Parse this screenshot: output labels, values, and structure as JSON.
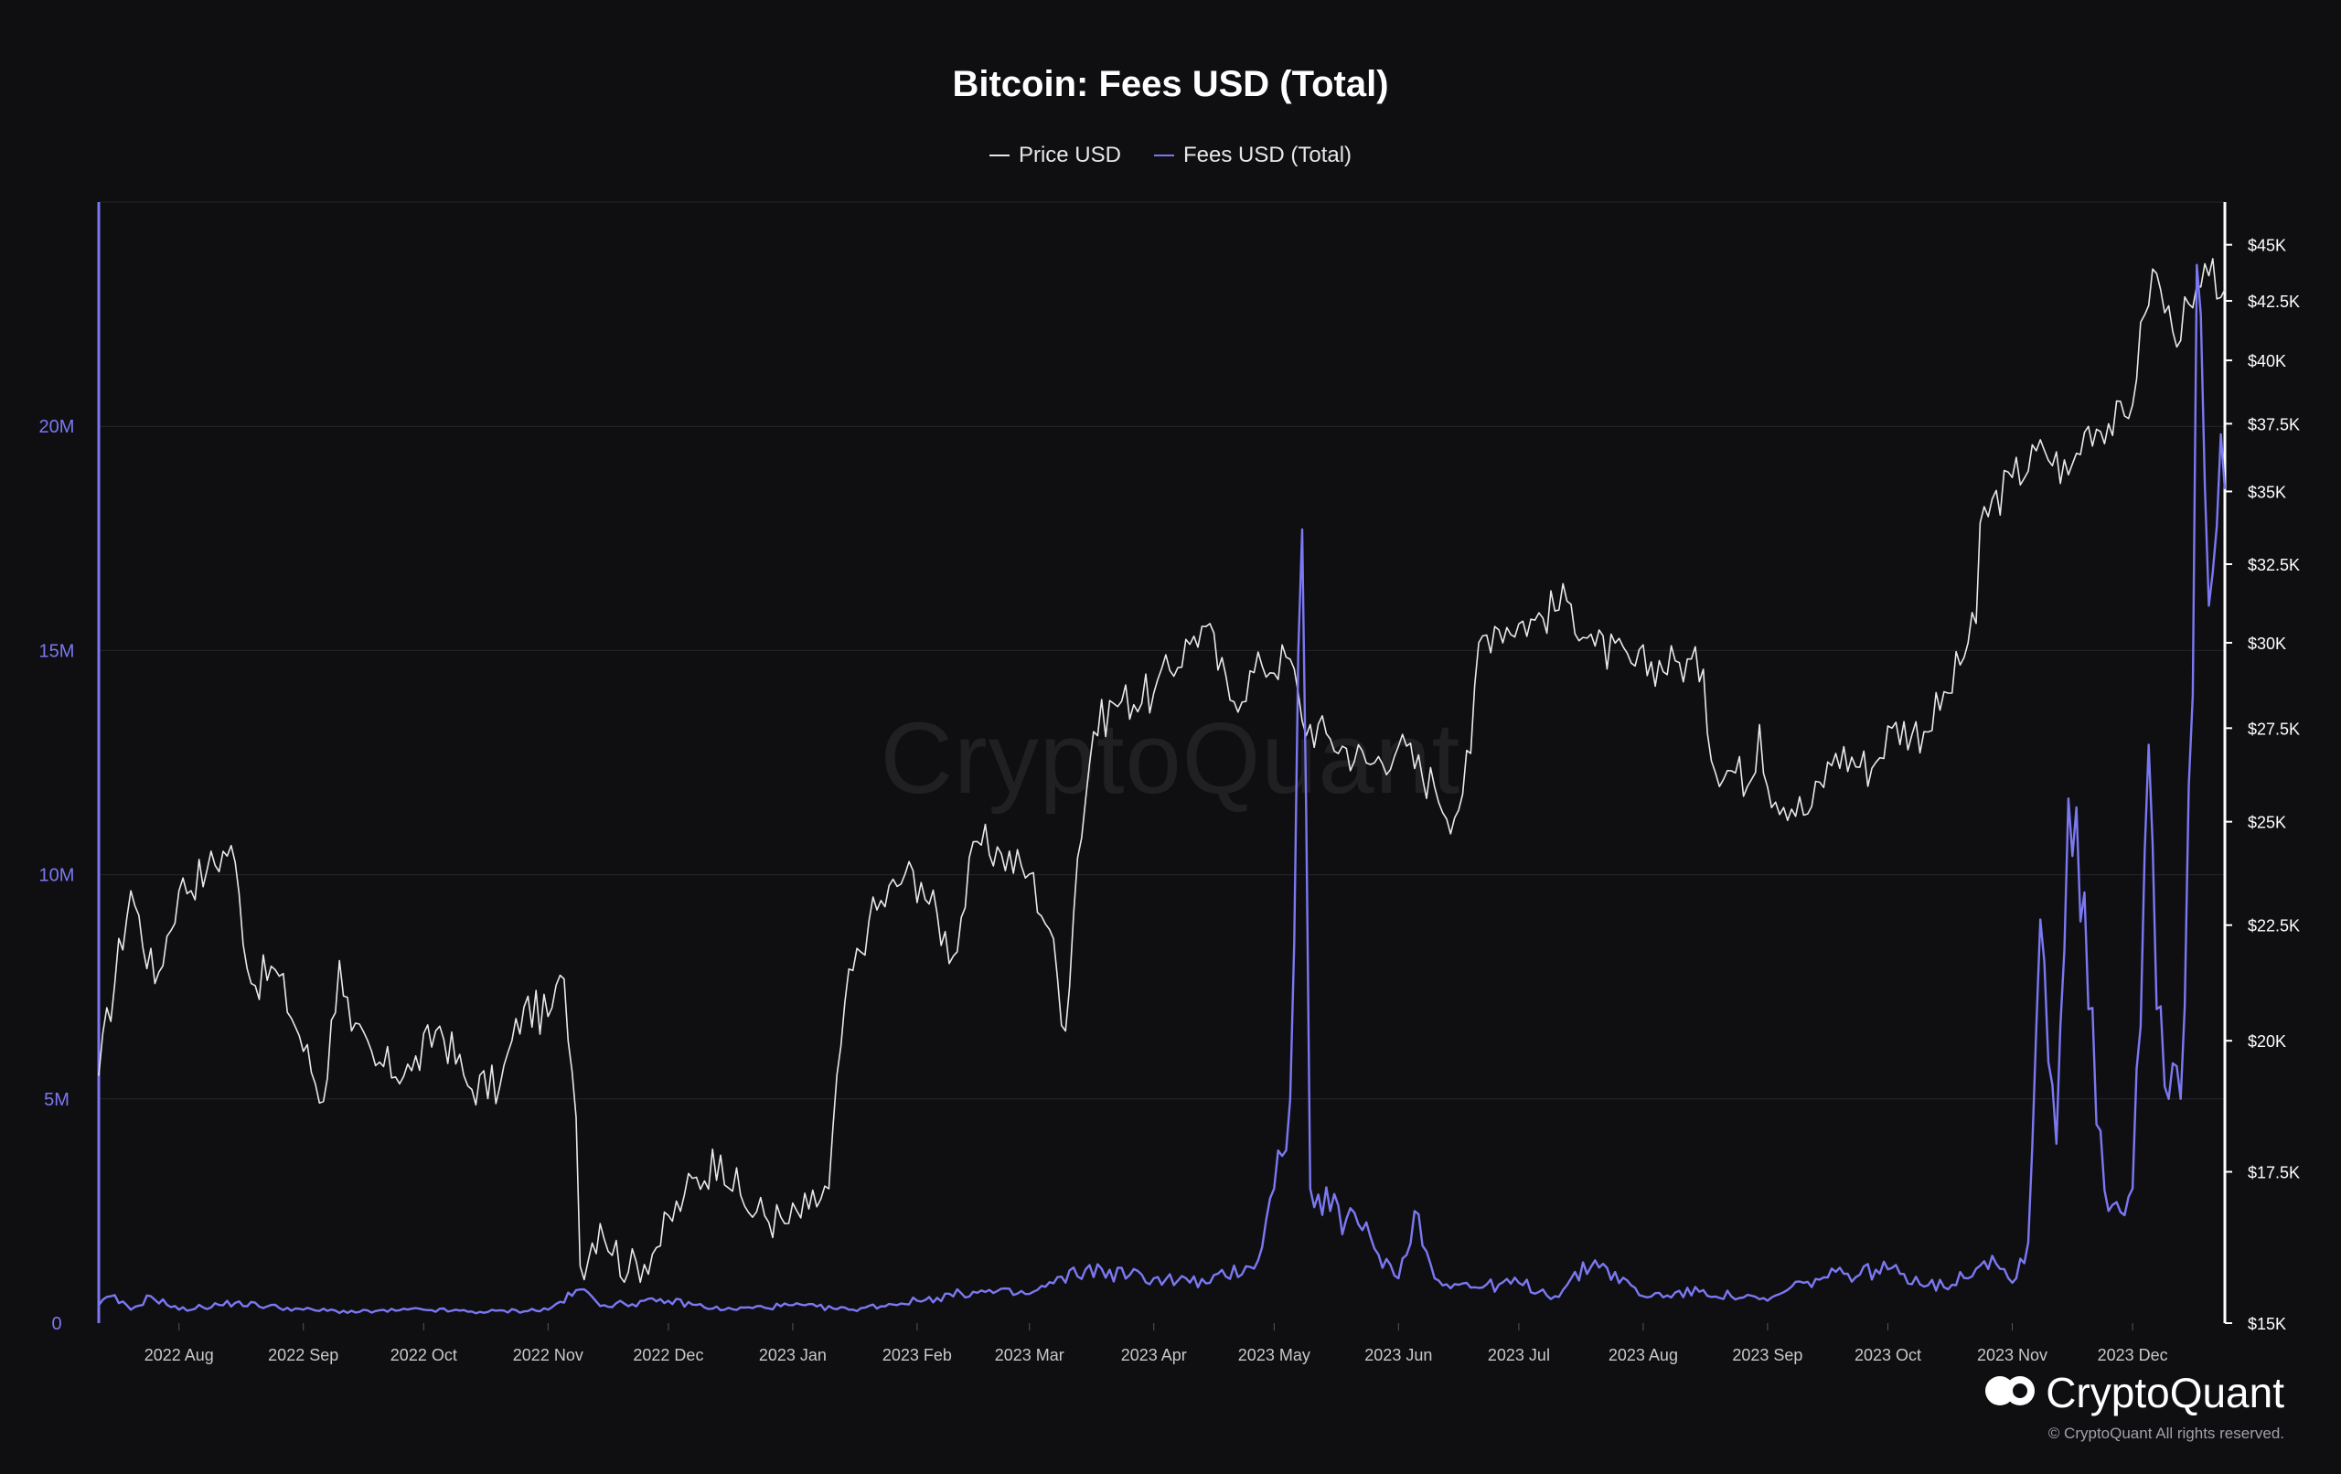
{
  "chart_data": {
    "type": "line",
    "title": "Bitcoin: Fees USD (Total)",
    "legend": {
      "placement": "top-center",
      "items": [
        "Price USD",
        "Fees USD (Total)"
      ]
    },
    "grid": true,
    "x_ticks": [
      "2022 Aug",
      "2022 Sep",
      "2022 Oct",
      "2022 Nov",
      "2022 Dec",
      "2023 Jan",
      "2023 Feb",
      "2023 Mar",
      "2023 Apr",
      "2023 May",
      "2023 Jun",
      "2023 Jul",
      "2023 Aug",
      "2023 Sep",
      "2023 Oct",
      "2023 Nov",
      "2023 Dec"
    ],
    "x_range": [
      "2022-07-12",
      "2023-12-24"
    ],
    "left_axis": {
      "ticks": [
        "0",
        "5M",
        "10M",
        "15M",
        "20M"
      ],
      "range": [
        0,
        25000000
      ],
      "color": "#7b78f2"
    },
    "right_axis": {
      "ticks": [
        "$15K",
        "$17.5K",
        "$20K",
        "$22.5K",
        "$25K",
        "$27.5K",
        "$30K",
        "$32.5K",
        "$35K",
        "$37.5K",
        "$40K",
        "$42.5K",
        "$45K"
      ],
      "range": [
        15000,
        47000
      ],
      "scale": "log"
    },
    "series": [
      {
        "name": "Price USD",
        "axis": "right",
        "color": "#e8e8e8",
        "points": [
          [
            "2022-07-12",
            19300
          ],
          [
            "2022-07-20",
            23300
          ],
          [
            "2022-07-26",
            21200
          ],
          [
            "2022-08-01",
            23300
          ],
          [
            "2022-08-08",
            23800
          ],
          [
            "2022-08-14",
            24400
          ],
          [
            "2022-08-19",
            21200
          ],
          [
            "2022-08-25",
            21500
          ],
          [
            "2022-08-31",
            20100
          ],
          [
            "2022-09-06",
            18800
          ],
          [
            "2022-09-10",
            21700
          ],
          [
            "2022-09-13",
            20200
          ],
          [
            "2022-09-19",
            19500
          ],
          [
            "2022-09-28",
            19400
          ],
          [
            "2022-10-05",
            20300
          ],
          [
            "2022-10-12",
            19100
          ],
          [
            "2022-10-20",
            19100
          ],
          [
            "2022-10-26",
            20700
          ],
          [
            "2022-11-01",
            20500
          ],
          [
            "2022-11-05",
            21300
          ],
          [
            "2022-11-08",
            18500
          ],
          [
            "2022-11-09",
            15900
          ],
          [
            "2022-11-14",
            16600
          ],
          [
            "2022-11-21",
            15800
          ],
          [
            "2022-11-28",
            16200
          ],
          [
            "2022-12-05",
            17100
          ],
          [
            "2022-12-14",
            17800
          ],
          [
            "2022-12-20",
            16900
          ],
          [
            "2022-12-30",
            16600
          ],
          [
            "2023-01-05",
            16850
          ],
          [
            "2023-01-10",
            17200
          ],
          [
            "2023-01-14",
            20800
          ],
          [
            "2023-01-20",
            22600
          ],
          [
            "2023-01-29",
            23700
          ],
          [
            "2023-02-02",
            23500
          ],
          [
            "2023-02-10",
            21800
          ],
          [
            "2023-02-16",
            24500
          ],
          [
            "2023-02-22",
            24200
          ],
          [
            "2023-03-01",
            23700
          ],
          [
            "2023-03-06",
            22400
          ],
          [
            "2023-03-10",
            20200
          ],
          [
            "2023-03-13",
            24100
          ],
          [
            "2023-03-17",
            27400
          ],
          [
            "2023-03-22",
            28200
          ],
          [
            "2023-04-01",
            28500
          ],
          [
            "2023-04-11",
            30200
          ],
          [
            "2023-04-14",
            30500
          ],
          [
            "2023-04-20",
            28300
          ],
          [
            "2023-04-28",
            29300
          ],
          [
            "2023-05-05",
            29500
          ],
          [
            "2023-05-08",
            27700
          ],
          [
            "2023-05-15",
            27200
          ],
          [
            "2023-05-25",
            26500
          ],
          [
            "2023-06-01",
            27000
          ],
          [
            "2023-06-10",
            25900
          ],
          [
            "2023-06-15",
            25100
          ],
          [
            "2023-06-19",
            26800
          ],
          [
            "2023-06-21",
            30000
          ],
          [
            "2023-06-25",
            30500
          ],
          [
            "2023-07-05",
            30700
          ],
          [
            "2023-07-13",
            31300
          ],
          [
            "2023-07-20",
            29900
          ],
          [
            "2023-07-30",
            29300
          ],
          [
            "2023-08-10",
            29400
          ],
          [
            "2023-08-16",
            29200
          ],
          [
            "2023-08-18",
            26600
          ],
          [
            "2023-08-28",
            26100
          ],
          [
            "2023-08-30",
            27600
          ],
          [
            "2023-09-01",
            25900
          ],
          [
            "2023-09-11",
            25200
          ],
          [
            "2023-09-18",
            26800
          ],
          [
            "2023-09-27",
            26400
          ],
          [
            "2023-10-02",
            27500
          ],
          [
            "2023-10-10",
            27400
          ],
          [
            "2023-10-16",
            28500
          ],
          [
            "2023-10-23",
            30600
          ],
          [
            "2023-10-24",
            33900
          ],
          [
            "2023-11-01",
            35500
          ],
          [
            "2023-11-09",
            36500
          ],
          [
            "2023-11-15",
            35600
          ],
          [
            "2023-11-20",
            37400
          ],
          [
            "2023-11-30",
            37700
          ],
          [
            "2023-12-04",
            41900
          ],
          [
            "2023-12-06",
            43900
          ],
          [
            "2023-12-11",
            41200
          ],
          [
            "2023-12-16",
            42200
          ],
          [
            "2023-12-20",
            43600
          ],
          [
            "2023-12-24",
            43000
          ]
        ]
      },
      {
        "name": "Fees USD (Total)",
        "axis": "left",
        "color": "#7b78f2",
        "points": [
          [
            "2022-07-12",
            400000
          ],
          [
            "2022-07-15",
            600000
          ],
          [
            "2022-07-20",
            300000
          ],
          [
            "2022-07-25",
            600000
          ],
          [
            "2022-08-01",
            300000
          ],
          [
            "2022-08-15",
            450000
          ],
          [
            "2022-09-01",
            300000
          ],
          [
            "2022-09-15",
            250000
          ],
          [
            "2022-10-01",
            300000
          ],
          [
            "2022-10-15",
            250000
          ],
          [
            "2022-11-01",
            300000
          ],
          [
            "2022-11-09",
            750000
          ],
          [
            "2022-11-15",
            400000
          ],
          [
            "2022-12-01",
            500000
          ],
          [
            "2022-12-15",
            300000
          ],
          [
            "2023-01-01",
            400000
          ],
          [
            "2023-01-15",
            300000
          ],
          [
            "2023-02-01",
            500000
          ],
          [
            "2023-02-15",
            700000
          ],
          [
            "2023-03-01",
            650000
          ],
          [
            "2023-03-15",
            1200000
          ],
          [
            "2023-04-01",
            1000000
          ],
          [
            "2023-04-15",
            900000
          ],
          [
            "2023-04-27",
            1400000
          ],
          [
            "2023-05-01",
            3000000
          ],
          [
            "2023-05-05",
            5000000
          ],
          [
            "2023-05-08",
            17700000
          ],
          [
            "2023-05-10",
            3000000
          ],
          [
            "2023-05-15",
            2500000
          ],
          [
            "2023-05-22",
            2200000
          ],
          [
            "2023-06-01",
            1000000
          ],
          [
            "2023-06-05",
            2500000
          ],
          [
            "2023-06-10",
            1000000
          ],
          [
            "2023-06-20",
            800000
          ],
          [
            "2023-07-01",
            900000
          ],
          [
            "2023-07-10",
            600000
          ],
          [
            "2023-07-20",
            1400000
          ],
          [
            "2023-08-01",
            600000
          ],
          [
            "2023-08-15",
            700000
          ],
          [
            "2023-09-01",
            500000
          ],
          [
            "2023-09-10",
            900000
          ],
          [
            "2023-09-20",
            1100000
          ],
          [
            "2023-10-01",
            1200000
          ],
          [
            "2023-10-15",
            800000
          ],
          [
            "2023-10-27",
            1500000
          ],
          [
            "2023-11-01",
            900000
          ],
          [
            "2023-11-05",
            1800000
          ],
          [
            "2023-11-08",
            9000000
          ],
          [
            "2023-11-12",
            4000000
          ],
          [
            "2023-11-15",
            11700000
          ],
          [
            "2023-11-17",
            11500000
          ],
          [
            "2023-11-20",
            7000000
          ],
          [
            "2023-11-25",
            2500000
          ],
          [
            "2023-12-01",
            3000000
          ],
          [
            "2023-12-05",
            12900000
          ],
          [
            "2023-12-07",
            7000000
          ],
          [
            "2023-12-10",
            5000000
          ],
          [
            "2023-12-13",
            5000000
          ],
          [
            "2023-12-16",
            14000000
          ],
          [
            "2023-12-17",
            23600000
          ],
          [
            "2023-12-20",
            16000000
          ],
          [
            "2023-12-24",
            18600000
          ]
        ]
      }
    ]
  },
  "watermark": "CryptoQuant",
  "brand": {
    "name": "CryptoQuant",
    "copyright": "© CryptoQuant All rights reserved."
  }
}
